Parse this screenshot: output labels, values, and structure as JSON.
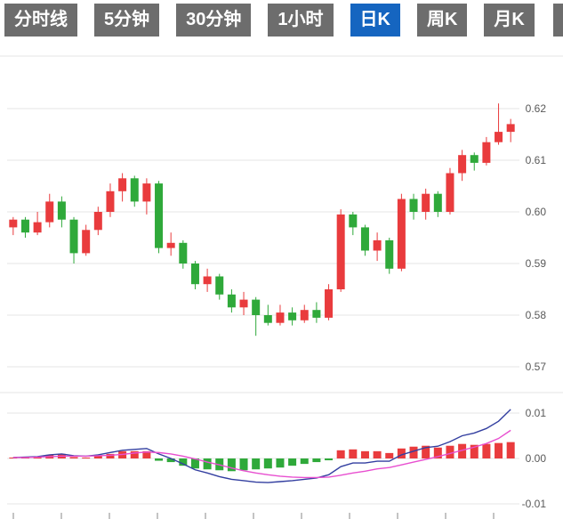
{
  "toolbar": {
    "tabs": [
      {
        "name": "tab-time-line",
        "label": "分时线",
        "active": false
      },
      {
        "name": "tab-5min",
        "label": "5分钟",
        "active": false
      },
      {
        "name": "tab-30min",
        "label": "30分钟",
        "active": false
      },
      {
        "name": "tab-1hour",
        "label": "1小时",
        "active": false
      },
      {
        "name": "tab-daily-k",
        "label": "日K",
        "active": true
      },
      {
        "name": "tab-weekly-k",
        "label": "周K",
        "active": false
      },
      {
        "name": "tab-monthly-k",
        "label": "月K",
        "active": false
      }
    ],
    "inactive_bg": "#6d6d6d",
    "active_bg": "#1565c0",
    "text_color": "#ffffff"
  },
  "chart_data": {
    "type": "candlestick+macd",
    "title": "",
    "legend_position": "none",
    "grid": true,
    "up_color": "#e93b3d",
    "down_color": "#2fa93a",
    "dif_color": "#333fa0",
    "dea_color": "#e84fd0",
    "grid_color": "#e4e4e4",
    "axis_label_color": "#595959",
    "price_axis": {
      "labels": [
        0.62,
        0.61,
        0.6,
        0.59,
        0.58,
        0.57
      ],
      "range": [
        0.568,
        0.63
      ]
    },
    "macd_axis": {
      "labels": [
        0.01,
        0.0,
        -0.01
      ],
      "range": [
        -0.012,
        0.012
      ]
    },
    "candles_ohlc_order": [
      "open",
      "high",
      "low",
      "close"
    ],
    "candles": [
      [
        0.597,
        0.599,
        0.5955,
        0.5985
      ],
      [
        0.5985,
        0.599,
        0.595,
        0.596
      ],
      [
        0.596,
        0.6,
        0.5955,
        0.598
      ],
      [
        0.598,
        0.6035,
        0.597,
        0.602
      ],
      [
        0.602,
        0.603,
        0.597,
        0.5985
      ],
      [
        0.5985,
        0.599,
        0.59,
        0.592
      ],
      [
        0.592,
        0.5975,
        0.5915,
        0.5965
      ],
      [
        0.5965,
        0.601,
        0.5955,
        0.6
      ],
      [
        0.6,
        0.6055,
        0.599,
        0.604
      ],
      [
        0.604,
        0.6075,
        0.602,
        0.6065
      ],
      [
        0.6065,
        0.607,
        0.601,
        0.602
      ],
      [
        0.602,
        0.6065,
        0.5995,
        0.6055
      ],
      [
        0.6055,
        0.606,
        0.592,
        0.593
      ],
      [
        0.593,
        0.596,
        0.5915,
        0.594
      ],
      [
        0.594,
        0.5945,
        0.589,
        0.59
      ],
      [
        0.59,
        0.5905,
        0.585,
        0.586
      ],
      [
        0.586,
        0.589,
        0.5845,
        0.5875
      ],
      [
        0.5875,
        0.588,
        0.583,
        0.584
      ],
      [
        0.584,
        0.585,
        0.5805,
        0.5815
      ],
      [
        0.5815,
        0.5845,
        0.58,
        0.583
      ],
      [
        0.583,
        0.5835,
        0.576,
        0.58
      ],
      [
        0.58,
        0.582,
        0.578,
        0.5785
      ],
      [
        0.5785,
        0.582,
        0.578,
        0.5805
      ],
      [
        0.5805,
        0.5815,
        0.578,
        0.579
      ],
      [
        0.579,
        0.582,
        0.5785,
        0.581
      ],
      [
        0.581,
        0.5825,
        0.5785,
        0.5795
      ],
      [
        0.5795,
        0.586,
        0.579,
        0.585
      ],
      [
        0.585,
        0.6005,
        0.5845,
        0.5995
      ],
      [
        0.5995,
        0.6,
        0.5955,
        0.597
      ],
      [
        0.597,
        0.5975,
        0.5915,
        0.5925
      ],
      [
        0.5925,
        0.596,
        0.5905,
        0.5945
      ],
      [
        0.5945,
        0.595,
        0.588,
        0.589
      ],
      [
        0.589,
        0.6035,
        0.5885,
        0.6025
      ],
      [
        0.6025,
        0.6035,
        0.5985,
        0.6
      ],
      [
        0.6,
        0.6045,
        0.5985,
        0.6035
      ],
      [
        0.6035,
        0.604,
        0.599,
        0.6
      ],
      [
        0.6,
        0.6085,
        0.5995,
        0.6075
      ],
      [
        0.6075,
        0.612,
        0.606,
        0.611
      ],
      [
        0.611,
        0.6115,
        0.608,
        0.6095
      ],
      [
        0.6095,
        0.6145,
        0.609,
        0.6135
      ],
      [
        0.6135,
        0.621,
        0.613,
        0.6155
      ],
      [
        0.6155,
        0.618,
        0.6135,
        0.617
      ]
    ],
    "macd": {
      "dif": [
        0.0002,
        0.0003,
        0.0004,
        0.0008,
        0.001,
        0.0006,
        0.0005,
        0.0008,
        0.0013,
        0.0018,
        0.002,
        0.0022,
        0.001,
        0.0,
        -0.0012,
        -0.0025,
        -0.0032,
        -0.004,
        -0.0046,
        -0.0049,
        -0.0052,
        -0.0053,
        -0.0051,
        -0.0049,
        -0.0046,
        -0.0043,
        -0.0036,
        -0.0018,
        -0.001,
        -0.001,
        -0.0006,
        -0.0006,
        0.0008,
        0.0016,
        0.0024,
        0.0027,
        0.0037,
        0.005,
        0.0056,
        0.0066,
        0.0082,
        0.0108
      ],
      "dea": [
        0.0002,
        0.0002,
        0.0003,
        0.0004,
        0.0005,
        0.0005,
        0.0005,
        0.0006,
        0.0007,
        0.0009,
        0.0012,
        0.0014,
        0.0013,
        0.001,
        0.0005,
        -0.0001,
        -0.0008,
        -0.0014,
        -0.0021,
        -0.0027,
        -0.0032,
        -0.0036,
        -0.0039,
        -0.0041,
        -0.0042,
        -0.0042,
        -0.0041,
        -0.0037,
        -0.0032,
        -0.0028,
        -0.0023,
        -0.002,
        -0.0014,
        -0.0008,
        -0.0002,
        0.0004,
        0.0011,
        0.0018,
        0.0025,
        0.0033,
        0.0044,
        0.0062
      ],
      "histogram": [
        0.0002,
        0.0002,
        0.0003,
        0.0008,
        0.001,
        0.0003,
        0.0002,
        0.0005,
        0.001,
        0.0016,
        0.0016,
        0.0016,
        -0.0005,
        -0.0008,
        -0.0016,
        -0.0022,
        -0.0024,
        -0.0026,
        -0.0028,
        -0.0026,
        -0.0024,
        -0.0022,
        -0.002,
        -0.0016,
        -0.0012,
        -0.0008,
        -0.0004,
        0.0018,
        0.002,
        0.0016,
        0.0016,
        0.0012,
        0.0022,
        0.0026,
        0.0028,
        0.0024,
        0.0028,
        0.0032,
        0.003,
        0.0032,
        0.0034,
        0.0036
      ]
    }
  }
}
